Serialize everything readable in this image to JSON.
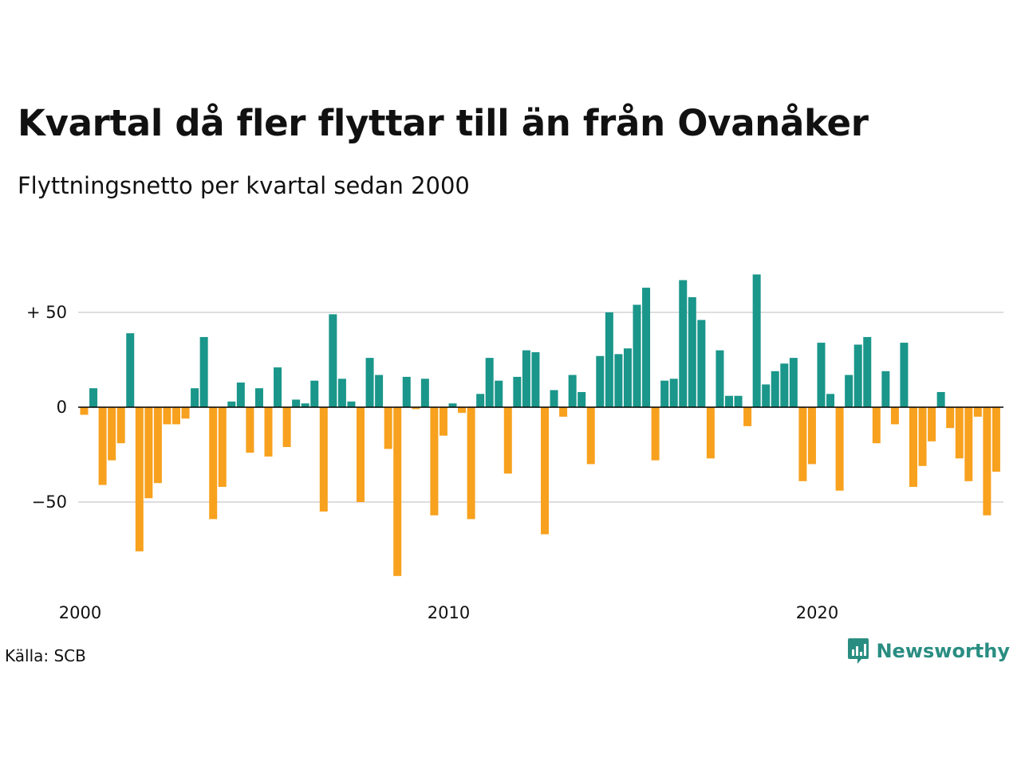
{
  "title": "Kvartal då fler flyttar till än från Ovanåker",
  "subtitle": "Flyttningsnetto per kvartal sedan 2000",
  "source": "Källa: SCB",
  "brand": {
    "name": "Newsworthy",
    "icon": "newsworthy-logo-icon"
  },
  "colors": {
    "positive": "#1a968a",
    "negative": "#f7a11e",
    "grid": "#dddddd",
    "zero_line": "#000000"
  },
  "chart_data": {
    "type": "bar",
    "title": "Kvartal då fler flyttar till än från Ovanåker",
    "xlabel": "",
    "ylabel": "",
    "x_ticks": [
      "2000",
      "2010",
      "2020"
    ],
    "y_ticks": [
      {
        "value": 50,
        "label": "+ 50"
      },
      {
        "value": 0,
        "label": "0"
      },
      {
        "value": -50,
        "label": "−50"
      }
    ],
    "ylim": [
      -95,
      75
    ],
    "grid": true,
    "first_quarter": "2000 Q1",
    "values": [
      -4,
      10,
      -41,
      -28,
      -19,
      39,
      -76,
      -48,
      -40,
      -9,
      -9,
      -6,
      10,
      37,
      -59,
      -42,
      3,
      13,
      -24,
      10,
      -26,
      21,
      -21,
      4,
      2,
      14,
      -55,
      49,
      15,
      3,
      -50,
      26,
      17,
      -22,
      -89,
      16,
      -1,
      15,
      -57,
      -15,
      2,
      -3,
      -59,
      7,
      26,
      14,
      -35,
      16,
      30,
      29,
      -67,
      9,
      -5,
      17,
      8,
      -30,
      27,
      50,
      28,
      31,
      54,
      63,
      -28,
      14,
      15,
      67,
      58,
      46,
      -27,
      30,
      6,
      6,
      -10,
      70,
      12,
      19,
      23,
      26,
      -39,
      -30,
      34,
      7,
      -44,
      17,
      33,
      37,
      -19,
      19,
      -9,
      34,
      -42,
      -31,
      -18,
      8,
      -11,
      -27,
      -39,
      -5,
      -57,
      -34
    ]
  }
}
